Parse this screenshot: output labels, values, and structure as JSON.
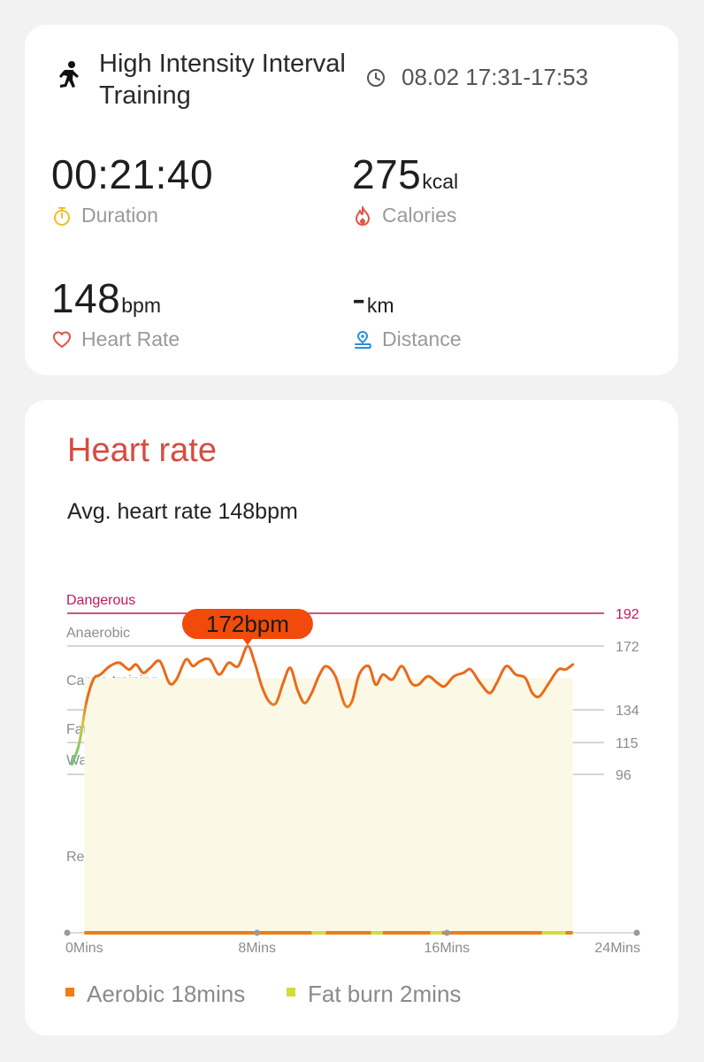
{
  "workout": {
    "title": "High Intensity Interval Training",
    "time_range": "08.02 17:31-17:53"
  },
  "metrics": {
    "duration": {
      "value": "00:21:40",
      "unit": "",
      "label": "Duration",
      "icon": "stopwatch-icon"
    },
    "calories": {
      "value": "275",
      "unit": "kcal",
      "label": "Calories",
      "icon": "flame-icon"
    },
    "heart_rate": {
      "value": "148",
      "unit": "bpm",
      "label": "Heart Rate",
      "icon": "heart-icon"
    },
    "distance": {
      "value": "-",
      "unit": "km",
      "label": "Distance",
      "icon": "location-pin-icon"
    }
  },
  "heart_rate_section": {
    "title": "Heart rate",
    "avg_text": "Avg. heart rate 148bpm",
    "peak_label": "172bpm"
  },
  "colors": {
    "accent_red": "#d84b40",
    "dangerous_line": "#c2185b",
    "hr_line": "#ea6a1a",
    "peak_badge": "#f24a0a",
    "aerobic": "#f07c18",
    "fat_burn": "#d2dc3c",
    "stopwatch": "#f0c020",
    "flame": "#e35247",
    "location": "#2d8be0"
  },
  "chart_data": {
    "type": "line",
    "title": "Heart rate",
    "xlabel": "",
    "ylabel": "",
    "x_unit": "mins",
    "x_ticks": [
      "0Mins",
      "8Mins",
      "16Mins",
      "24Mins"
    ],
    "x_tick_values": [
      0,
      8,
      16,
      24
    ],
    "xlim": [
      0,
      24
    ],
    "zones": [
      {
        "name": "Dangerous",
        "threshold": 192
      },
      {
        "name": "Anaerobic",
        "threshold": 172
      },
      {
        "name": "Cardio training",
        "threshold": 153
      },
      {
        "name": "Fat burning",
        "threshold": 134
      },
      {
        "name": "Warm up",
        "threshold": 115
      },
      {
        "name": "Resting",
        "threshold": 96
      }
    ],
    "y_tick_labels": [
      "192",
      "172",
      "134",
      "115",
      "96"
    ],
    "peak": {
      "x": 7.6,
      "y": 172,
      "label": "172bpm"
    },
    "series": [
      {
        "x": [
          0.2,
          0.5,
          0.8,
          1.1,
          1.4,
          1.8,
          2.2,
          2.6,
          2.9,
          3.2,
          3.5,
          3.9,
          4.3,
          4.6,
          5.0,
          5.3,
          5.6,
          6.0,
          6.4,
          6.8,
          7.2,
          7.6,
          7.9,
          8.2,
          8.5,
          8.8,
          9.1,
          9.4,
          9.7,
          10.0,
          10.3,
          10.6,
          10.9,
          11.3,
          11.7,
          12.0,
          12.3,
          12.7,
          13.0,
          13.3,
          13.7,
          14.1,
          14.5,
          14.8,
          15.2,
          15.6,
          15.9,
          16.3,
          16.7,
          17.0,
          17.4,
          17.8,
          18.1,
          18.5,
          18.9,
          19.3,
          19.6,
          19.9,
          20.3,
          20.7,
          21.0,
          21.3
        ],
        "y": [
          102,
          114,
          138,
          152,
          155,
          160,
          162,
          158,
          161,
          156,
          159,
          163,
          150,
          152,
          164,
          160,
          163,
          164,
          155,
          162,
          160,
          172,
          162,
          148,
          139,
          138,
          150,
          159,
          146,
          138,
          144,
          154,
          160,
          154,
          137,
          139,
          155,
          160,
          149,
          155,
          152,
          160,
          150,
          149,
          154,
          150,
          148,
          154,
          156,
          158,
          150,
          144,
          150,
          160,
          155,
          153,
          144,
          142,
          150,
          158,
          158,
          161
        ]
      }
    ],
    "time_in_zone": {
      "aerobic_mins": 18,
      "fat_burn_mins": 2
    },
    "legend": [
      "Aerobic 18mins",
      "Fat burn 2mins"
    ],
    "legend_position": "bottom-left",
    "grid": true
  },
  "legend": {
    "aerobic": "Aerobic 18mins",
    "fat_burn": "Fat burn 2mins"
  }
}
